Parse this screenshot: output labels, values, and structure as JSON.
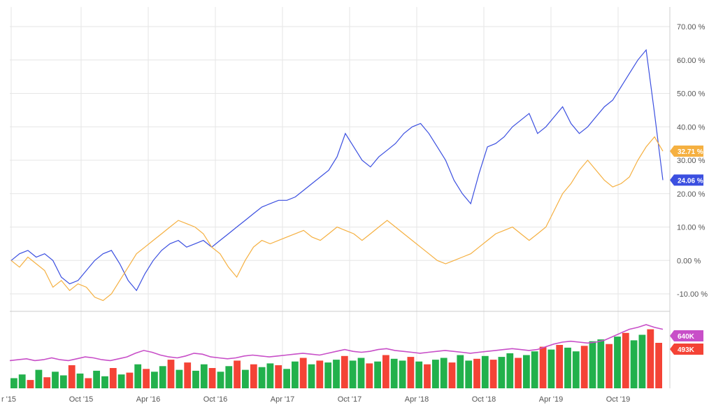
{
  "chart_data": [
    {
      "type": "line",
      "title": "",
      "xlabel": "",
      "ylabel": "",
      "x_tick_labels": [
        "r '15",
        "Oct '15",
        "Apr '16",
        "Oct '16",
        "Apr '17",
        "Oct '17",
        "Apr '18",
        "Oct '18",
        "Apr '19",
        "Oct '19"
      ],
      "y_tick_labels": [
        "70.00 %",
        "60.00 %",
        "50.00 %",
        "40.00 %",
        "30.00 %",
        "20.00 %",
        "10.00 %",
        "0.00 %",
        "-10.00 %"
      ],
      "ylim": [
        -15,
        75
      ],
      "grid": true,
      "series": [
        {
          "color": "#3b4fe0",
          "last_value_label": "24.06 %",
          "values": [
            0,
            2,
            3,
            1,
            2,
            0,
            -5,
            -7,
            -6,
            -3,
            0,
            2,
            3,
            -1,
            -6,
            -9,
            -4,
            0,
            3,
            5,
            6,
            4,
            5,
            6,
            4,
            6,
            8,
            10,
            12,
            14,
            16,
            17,
            18,
            18,
            19,
            21,
            23,
            25,
            27,
            31,
            38,
            34,
            30,
            28,
            31,
            33,
            35,
            38,
            40,
            41,
            38,
            34,
            30,
            24,
            20,
            17,
            26,
            34,
            35,
            37,
            40,
            42,
            44,
            38,
            40,
            43,
            46,
            41,
            38,
            40,
            43,
            46,
            48,
            52,
            56,
            60,
            63,
            44,
            24.06
          ]
        },
        {
          "color": "#f5b041",
          "last_value_label": "32.71 %",
          "values": [
            0,
            -2,
            1,
            -1,
            -3,
            -8,
            -6,
            -9,
            -7,
            -8,
            -11,
            -12,
            -10,
            -6,
            -2,
            2,
            4,
            6,
            8,
            10,
            12,
            11,
            10,
            8,
            4,
            2,
            -2,
            -5,
            0,
            4,
            6,
            5,
            6,
            7,
            8,
            9,
            7,
            6,
            8,
            10,
            9,
            8,
            6,
            8,
            10,
            12,
            10,
            8,
            6,
            4,
            2,
            0,
            -1,
            0,
            1,
            2,
            4,
            6,
            8,
            9,
            10,
            8,
            6,
            8,
            10,
            15,
            20,
            23,
            27,
            30,
            27,
            24,
            22,
            23,
            25,
            30,
            34,
            37,
            32.71
          ]
        }
      ]
    },
    {
      "type": "bar",
      "title": "",
      "xlabel": "",
      "ylabel": "",
      "colors": {
        "up": "#22b14c",
        "down": "#f44336",
        "average_line": "#c84fc8"
      },
      "badges": [
        {
          "label": "640K",
          "color": "#c84fc8"
        },
        {
          "label": "493K",
          "color": "#f44336"
        }
      ],
      "average_line": [
        300,
        310,
        320,
        300,
        310,
        330,
        310,
        300,
        320,
        340,
        330,
        310,
        300,
        320,
        340,
        380,
        410,
        390,
        360,
        340,
        330,
        350,
        380,
        370,
        340,
        330,
        320,
        330,
        350,
        360,
        350,
        340,
        350,
        360,
        370,
        380,
        370,
        360,
        380,
        400,
        420,
        400,
        390,
        400,
        420,
        430,
        410,
        400,
        390,
        380,
        390,
        400,
        410,
        400,
        390,
        380,
        390,
        400,
        410,
        420,
        430,
        420,
        410,
        420,
        450,
        480,
        500,
        510,
        500,
        490,
        500,
        520,
        560,
        600,
        640,
        660,
        690,
        660,
        640
      ],
      "values": [
        110,
        150,
        90,
        200,
        120,
        180,
        140,
        250,
        160,
        110,
        190,
        130,
        220,
        150,
        170,
        260,
        210,
        180,
        240,
        310,
        200,
        280,
        190,
        260,
        220,
        180,
        240,
        300,
        200,
        260,
        230,
        270,
        250,
        210,
        290,
        330,
        260,
        300,
        280,
        310,
        350,
        300,
        330,
        270,
        290,
        360,
        320,
        300,
        340,
        290,
        260,
        310,
        330,
        280,
        360,
        300,
        320,
        350,
        310,
        340,
        380,
        330,
        360,
        400,
        450,
        420,
        470,
        440,
        400,
        460,
        510,
        530,
        480,
        560,
        600,
        520,
        580,
        640,
        493
      ],
      "up": [
        true,
        true,
        false,
        true,
        false,
        true,
        true,
        false,
        true,
        false,
        true,
        true,
        false,
        true,
        false,
        true,
        false,
        true,
        true,
        false,
        true,
        false,
        true,
        true,
        false,
        true,
        true,
        false,
        true,
        false,
        true,
        true,
        false,
        true,
        true,
        false,
        true,
        false,
        true,
        true,
        false,
        true,
        true,
        false,
        true,
        false,
        true,
        true,
        false,
        true,
        false,
        true,
        true,
        false,
        true,
        true,
        false,
        true,
        false,
        true,
        true,
        false,
        true,
        true,
        false,
        true,
        false,
        true,
        true,
        false,
        true,
        true,
        false,
        true,
        false,
        true,
        true,
        false,
        false
      ]
    }
  ]
}
